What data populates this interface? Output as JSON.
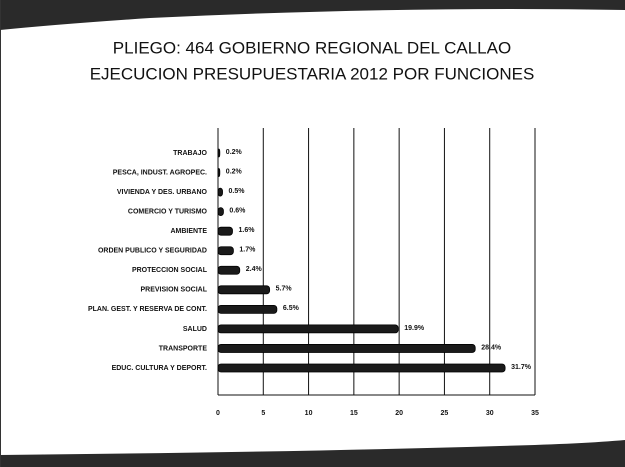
{
  "chart_data": {
    "type": "bar",
    "orientation": "horizontal",
    "title": "PLIEGO: 464 GOBIERNO REGIONAL DEL CALLAO",
    "subtitle": "EJECUCION PRESUPUESTARIA 2012 POR FUNCIONES",
    "categories": [
      "TRABAJO",
      "PESCA, INDUST. AGROPEC.",
      "VIVIENDA Y DES. URBANO",
      "COMERCIO Y TURISMO",
      "AMBIENTE",
      "ORDEN PUBLICO Y SEGURIDAD",
      "PROTECCION SOCIAL",
      "PREVISION SOCIAL",
      "PLAN. GEST. Y RESERVA DE CONT.",
      "SALUD",
      "TRANSPORTE",
      "EDUC. CULTURA Y DEPORT."
    ],
    "values": [
      0.2,
      0.2,
      0.5,
      0.6,
      1.6,
      1.7,
      2.4,
      5.7,
      6.5,
      19.9,
      28.4,
      31.7
    ],
    "value_labels": [
      "0.2%",
      "0.2%",
      "0.5%",
      "0.6%",
      "1.6%",
      "1.7%",
      "2.4%",
      "5.7%",
      "6.5%",
      "19.9%",
      "28.4%",
      "31.7%"
    ],
    "color": "#1a1a1a",
    "xlim": [
      0,
      35
    ],
    "xticks": [
      0,
      5,
      10,
      15,
      20,
      25,
      30,
      35
    ],
    "grid": true
  }
}
